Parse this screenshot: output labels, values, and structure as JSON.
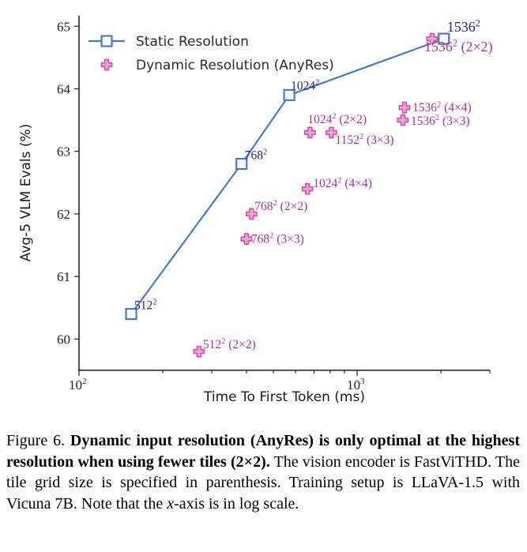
{
  "figure": {
    "caption": {
      "label": "Figure 6. ",
      "bold": "Dynamic input resolution (AnyRes) is only optimal at the highest resolution when using fewer tiles (2×2).",
      "body_pre_italic": " The vision encoder is FastViTHD. The tile grid size is specified in parenthe­sis. Training setup is LLaVA-1.5 with Vicuna 7B. Note that the ",
      "body_italic": "x",
      "body_post_italic": "-axis is in log scale."
    }
  },
  "chart_data": {
    "type": "scatter",
    "title": "",
    "xlabel": "Time To First Token (ms)",
    "ylabel": "Avg-5 VLM Evals (%)",
    "x_scale": "log",
    "grid": false,
    "legend_position": "upper left",
    "xlim": [
      100,
      3000
    ],
    "ylim": [
      59.5,
      65.17
    ],
    "y_ticks": [
      60,
      61,
      62,
      63,
      64,
      65
    ],
    "x_major_ticks": [
      {
        "value": 100,
        "base": "10",
        "exp": "2"
      },
      {
        "value": 1000,
        "base": "10",
        "exp": "3"
      }
    ],
    "x_minor_ticks": [
      200,
      300,
      400,
      500,
      600,
      700,
      800,
      900,
      2000,
      3000
    ],
    "res_superscript": "2",
    "colors": {
      "static_line": "#4878cf",
      "static_marker_fill": "#ffffff",
      "static_label": "#26267d",
      "dynamic_fill": "#f2a3d6",
      "dynamic_edge": "#ce58a4",
      "dynamic_label": "#a23399",
      "axis": "#1a1a1a",
      "tick_text": "#222222",
      "legend_text": "#2b2b2b"
    },
    "series": [
      {
        "name": "Static Resolution",
        "marker": "square",
        "draw_line": true,
        "points": [
          {
            "x": 154,
            "y": 60.4,
            "res": "512",
            "tiles": null,
            "dx": 4,
            "dy": -6
          },
          {
            "x": 384,
            "y": 62.8,
            "res": "768",
            "tiles": null,
            "dx": 4,
            "dy": -6
          },
          {
            "x": 570,
            "y": 63.9,
            "res": "1024",
            "tiles": null,
            "dx": 2,
            "dy": -7
          },
          {
            "x": 2050,
            "y": 64.8,
            "res": "1536",
            "tiles": null,
            "dx": 4,
            "dy": -9,
            "fs": 18
          }
        ]
      },
      {
        "name": "Dynamic Resolution (AnyRes)",
        "marker": "plus",
        "draw_line": false,
        "points": [
          {
            "x": 270,
            "y": 59.8,
            "res": "512",
            "tiles": "2×2",
            "dx": 5,
            "dy": -4
          },
          {
            "x": 400,
            "y": 61.6,
            "res": "768",
            "tiles": "3×3",
            "dx": 6,
            "dy": 5
          },
          {
            "x": 417,
            "y": 62.0,
            "res": "768",
            "tiles": "2×2",
            "dx": 4,
            "dy": -5
          },
          {
            "x": 663,
            "y": 62.4,
            "res": "1024",
            "tiles": "4×4",
            "dx": 7,
            "dy": -2
          },
          {
            "x": 677,
            "y": 63.3,
            "res": "1024",
            "tiles": "2×2",
            "dx": -3,
            "dy": -12
          },
          {
            "x": 808,
            "y": 63.3,
            "res": "1152",
            "tiles": "3×3",
            "dx": 5,
            "dy": 14
          },
          {
            "x": 1460,
            "y": 63.5,
            "res": "1536",
            "tiles": "3×3",
            "dx": 10,
            "dy": 6
          },
          {
            "x": 1480,
            "y": 63.7,
            "res": "1536",
            "tiles": "4×4",
            "dx": 10,
            "dy": 5
          },
          {
            "x": 1860,
            "y": 64.8,
            "res": "1536",
            "tiles": "2×2",
            "dx": -10,
            "dy": 16,
            "fs": 18
          }
        ]
      }
    ]
  }
}
